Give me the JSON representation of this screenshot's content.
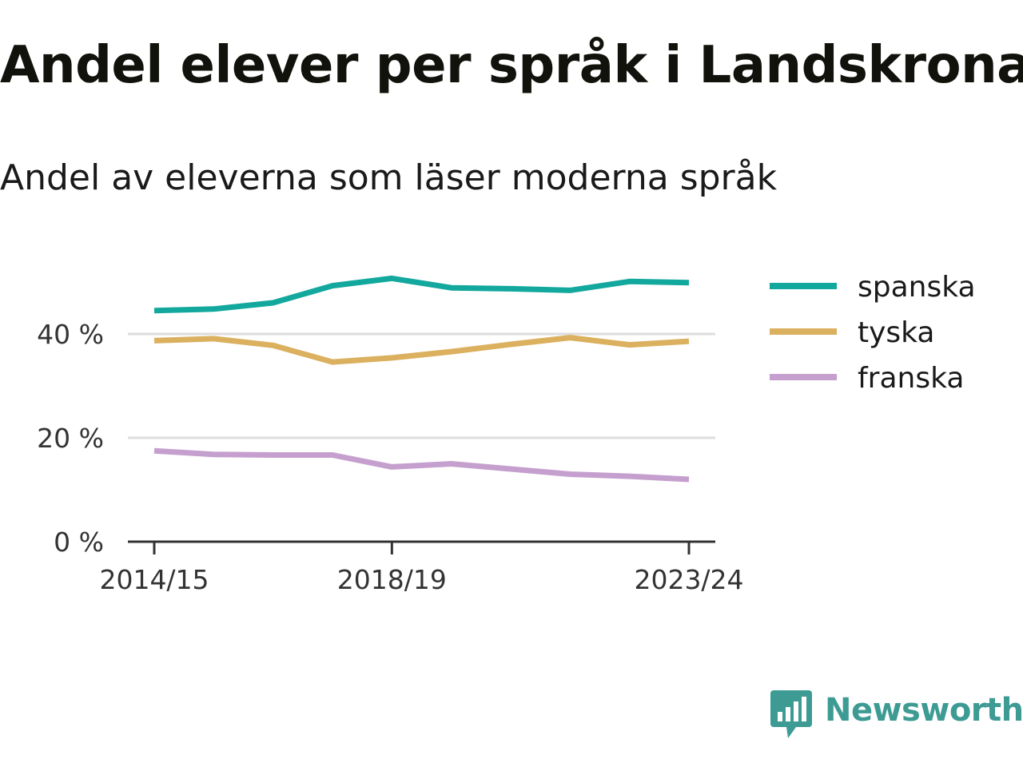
{
  "title": "Andel elever per språk i Landskrona",
  "subtitle": "Andel av eleverna som läser moderna språk",
  "brand": {
    "name": "Newsworthy",
    "logo_icon": "bar-chart-speech-bubble-icon",
    "color": "#3d9b94"
  },
  "colors": {
    "gridline": "#dddddd",
    "axis": "#333333",
    "text": "#333333"
  },
  "chart_data": {
    "type": "line",
    "x": [
      "2014/15",
      "2015/16",
      "2016/17",
      "2017/18",
      "2018/19",
      "2019/20",
      "2020/21",
      "2021/22",
      "2022/23",
      "2023/24"
    ],
    "x_tick_labels": [
      "2014/15",
      "2018/19",
      "2023/24"
    ],
    "y_ticks": [
      0,
      20,
      40
    ],
    "y_tick_labels": [
      "0 %",
      "20 %",
      "40 %"
    ],
    "ylim": [
      0,
      53
    ],
    "unit": "%",
    "grid": true,
    "legend_position": "right",
    "series": [
      {
        "name": "spanska",
        "color": "#12a89d",
        "values": [
          44.5,
          44.8,
          46.0,
          49.3,
          50.7,
          48.9,
          48.7,
          48.4,
          50.1,
          49.9
        ]
      },
      {
        "name": "tyska",
        "color": "#dbb05e",
        "values": [
          38.7,
          39.1,
          37.8,
          34.6,
          35.4,
          36.6,
          38.0,
          39.3,
          37.9,
          38.6
        ]
      },
      {
        "name": "franska",
        "color": "#c59fce",
        "values": [
          17.5,
          16.8,
          16.7,
          16.7,
          14.4,
          15.0,
          14.0,
          13.0,
          12.6,
          12.0
        ]
      }
    ]
  }
}
